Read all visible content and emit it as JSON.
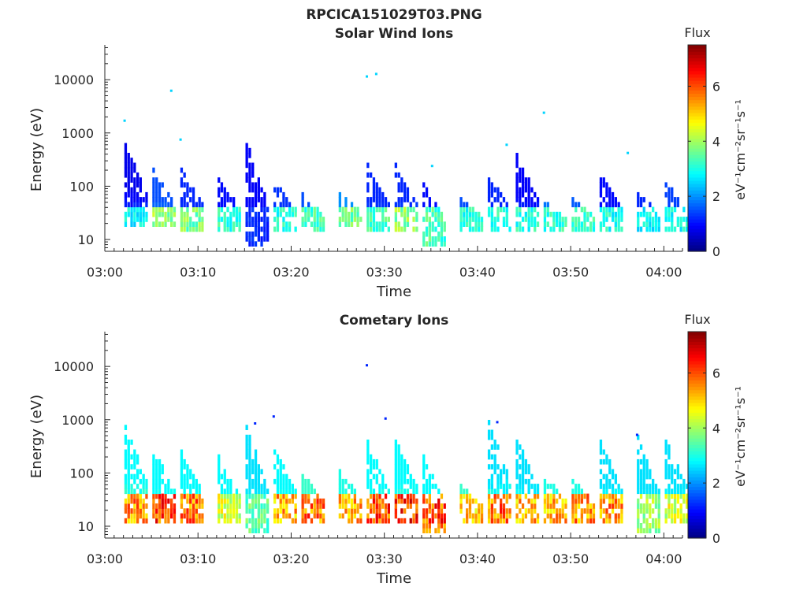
{
  "figure_title": "RPCICA151029T03.PNG",
  "chart_data": [
    {
      "type": "heatmap",
      "title": "Solar Wind Ions",
      "xlabel": "Time",
      "ylabel": "Energy (eV)",
      "yscale": "log",
      "xlim": [
        "03:00",
        "04:02"
      ],
      "ylim": [
        6,
        45000
      ],
      "x_ticks": [
        "03:00",
        "03:10",
        "03:20",
        "03:30",
        "03:40",
        "03:50",
        "04:00"
      ],
      "y_ticks": [
        "10",
        "100",
        "1000",
        "10000"
      ],
      "grid": false,
      "colorbar": {
        "title": "Flux",
        "label": "eV⁻¹cm⁻²sr⁻¹s⁻¹",
        "range": [
          0,
          7.5
        ],
        "ticks": [
          "0",
          "2",
          "4",
          "6"
        ],
        "colormap": "jet"
      },
      "bursts": [
        {
          "t": "03:03",
          "e_low": 18,
          "e_high": 600,
          "peak": 3.2,
          "tail_low": 0.8
        },
        {
          "t": "03:06",
          "e_low": 18,
          "e_high": 200,
          "peak": 4.4,
          "tail_low": 1.5
        },
        {
          "t": "03:09",
          "e_low": 15,
          "e_high": 200,
          "peak": 4.2,
          "tail_low": 1.2
        },
        {
          "t": "03:13",
          "e_low": 15,
          "e_high": 140,
          "peak": 3.6,
          "tail_low": 1.0
        },
        {
          "t": "03:16",
          "e_low": 7,
          "e_high": 700,
          "peak": 1.4,
          "tail_low": 0.9
        },
        {
          "t": "03:19",
          "e_low": 15,
          "e_high": 120,
          "peak": 3.5,
          "tail_low": 1.3
        },
        {
          "t": "03:22",
          "e_low": 15,
          "e_high": 70,
          "peak": 3.8,
          "tail_low": 1.5
        },
        {
          "t": "03:26",
          "e_low": 18,
          "e_high": 80,
          "peak": 4.2,
          "tail_low": 2.0
        },
        {
          "t": "03:29",
          "e_low": 15,
          "e_high": 250,
          "peak": 3.8,
          "tail_low": 1.2
        },
        {
          "t": "03:32",
          "e_low": 15,
          "e_high": 250,
          "peak": 4.4,
          "tail_low": 1.2
        },
        {
          "t": "03:35",
          "e_low": 7,
          "e_high": 120,
          "peak": 3.8,
          "tail_low": 1.0
        },
        {
          "t": "03:39",
          "e_low": 15,
          "e_high": 60,
          "peak": 3.5,
          "tail_low": 1.5
        },
        {
          "t": "03:42",
          "e_low": 15,
          "e_high": 150,
          "peak": 3.6,
          "tail_low": 1.2
        },
        {
          "t": "03:45",
          "e_low": 15,
          "e_high": 380,
          "peak": 3.5,
          "tail_low": 0.9
        },
        {
          "t": "03:48",
          "e_low": 15,
          "e_high": 50,
          "peak": 3.6,
          "tail_low": 1.8
        },
        {
          "t": "03:51",
          "e_low": 15,
          "e_high": 60,
          "peak": 3.6,
          "tail_low": 1.6
        },
        {
          "t": "03:54",
          "e_low": 15,
          "e_high": 190,
          "peak": 3.4,
          "tail_low": 1.0
        },
        {
          "t": "03:58",
          "e_low": 15,
          "e_high": 80,
          "peak": 3.2,
          "tail_low": 1.2
        },
        {
          "t": "04:01",
          "e_low": 15,
          "e_high": 120,
          "peak": 3.3,
          "tail_low": 1.4
        }
      ],
      "isolated_points": [
        {
          "t": "03:02",
          "e": 1700
        },
        {
          "t": "03:07",
          "e": 6200
        },
        {
          "t": "03:08",
          "e": 750
        },
        {
          "t": "03:28",
          "e": 11500
        },
        {
          "t": "03:29",
          "e": 12800
        },
        {
          "t": "03:47",
          "e": 2400
        },
        {
          "t": "03:56",
          "e": 420
        },
        {
          "t": "03:35",
          "e": 240
        },
        {
          "t": "03:43",
          "e": 600
        }
      ]
    },
    {
      "type": "heatmap",
      "title": "Cometary Ions",
      "xlabel": "Time",
      "ylabel": "Energy (eV)",
      "yscale": "log",
      "xlim": [
        "03:00",
        "04:02"
      ],
      "ylim": [
        6,
        45000
      ],
      "x_ticks": [
        "03:00",
        "03:10",
        "03:20",
        "03:30",
        "03:40",
        "03:50",
        "04:00"
      ],
      "y_ticks": [
        "10",
        "100",
        "1000",
        "10000"
      ],
      "grid": false,
      "colorbar": {
        "title": "Flux",
        "label": "eV⁻¹cm⁻²sr⁻¹s⁻¹",
        "range": [
          0,
          7.5
        ],
        "ticks": [
          "0",
          "2",
          "4",
          "6"
        ],
        "colormap": "jet"
      },
      "bursts": [
        {
          "t": "03:03",
          "e_low": 12,
          "e_high": 800,
          "peak": 6.3,
          "tail_low": 2.8
        },
        {
          "t": "03:06",
          "e_low": 12,
          "e_high": 300,
          "peak": 6.9,
          "tail_low": 2.8
        },
        {
          "t": "03:09",
          "e_low": 12,
          "e_high": 250,
          "peak": 6.5,
          "tail_low": 2.8
        },
        {
          "t": "03:13",
          "e_low": 12,
          "e_high": 200,
          "peak": 5.0,
          "tail_low": 2.8
        },
        {
          "t": "03:16",
          "e_low": 7,
          "e_high": 800,
          "peak": 4.0,
          "tail_low": 2.6
        },
        {
          "t": "03:19",
          "e_low": 12,
          "e_high": 300,
          "peak": 6.0,
          "tail_low": 2.8
        },
        {
          "t": "03:22",
          "e_low": 12,
          "e_high": 100,
          "peak": 6.5,
          "tail_low": 3.2
        },
        {
          "t": "03:26",
          "e_low": 12,
          "e_high": 120,
          "peak": 6.0,
          "tail_low": 3.0
        },
        {
          "t": "03:29",
          "e_low": 12,
          "e_high": 400,
          "peak": 6.8,
          "tail_low": 2.8
        },
        {
          "t": "03:32",
          "e_low": 12,
          "e_high": 450,
          "peak": 7.2,
          "tail_low": 2.8
        },
        {
          "t": "03:35",
          "e_low": 7,
          "e_high": 200,
          "peak": 6.8,
          "tail_low": 2.8
        },
        {
          "t": "03:39",
          "e_low": 12,
          "e_high": 60,
          "peak": 5.8,
          "tail_low": 3.2
        },
        {
          "t": "03:42",
          "e_low": 12,
          "e_high": 900,
          "peak": 6.5,
          "tail_low": 2.6
        },
        {
          "t": "03:45",
          "e_low": 12,
          "e_high": 450,
          "peak": 6.0,
          "tail_low": 2.6
        },
        {
          "t": "03:48",
          "e_low": 12,
          "e_high": 100,
          "peak": 6.0,
          "tail_low": 3.0
        },
        {
          "t": "03:51",
          "e_low": 12,
          "e_high": 80,
          "peak": 6.3,
          "tail_low": 3.0
        },
        {
          "t": "03:54",
          "e_low": 12,
          "e_high": 400,
          "peak": 6.3,
          "tail_low": 2.6
        },
        {
          "t": "03:58",
          "e_low": 8,
          "e_high": 500,
          "peak": 4.5,
          "tail_low": 2.6
        },
        {
          "t": "04:01",
          "e_low": 12,
          "e_high": 450,
          "peak": 5.0,
          "tail_low": 2.6
        }
      ],
      "isolated_points": [
        {
          "t": "03:28",
          "e": 10500
        },
        {
          "t": "03:30",
          "e": 1050
        },
        {
          "t": "03:18",
          "e": 1150
        },
        {
          "t": "03:16",
          "e": 850
        },
        {
          "t": "03:42",
          "e": 900
        },
        {
          "t": "03:57",
          "e": 520
        }
      ]
    }
  ]
}
